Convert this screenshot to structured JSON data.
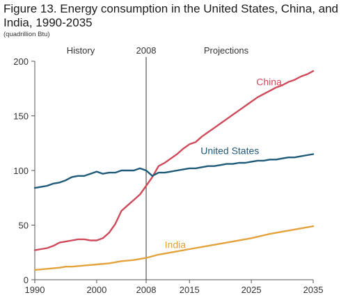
{
  "title": "Figure 13. Energy consumption in the United States, China, and India, 1990-2035",
  "units": "(quadrillion Btu)",
  "colors": {
    "china": "#cf4a5a",
    "united_states": "#1e5a78",
    "india": "#e3a23b",
    "axis": "#555555",
    "divider": "#333333",
    "text": "#333333"
  },
  "chart_data": {
    "type": "line",
    "title": "Figure 13. Energy consumption in the United States, China, and India, 1990-2035",
    "ylabel": "(quadrillion Btu)",
    "xlabel": "",
    "xlim": [
      1990,
      2035
    ],
    "ylim": [
      0,
      200
    ],
    "x_ticks": [
      {
        "value": 1990,
        "label": "1990"
      },
      {
        "value": 2000,
        "label": "2000"
      },
      {
        "value": 2008,
        "label": "2008"
      },
      {
        "value": 2015,
        "label": "2015"
      },
      {
        "value": 2025,
        "label": "2025"
      },
      {
        "value": 2035,
        "label": "2035"
      }
    ],
    "y_ticks": [
      {
        "value": 0,
        "label": "0"
      },
      {
        "value": 50,
        "label": "50"
      },
      {
        "value": 100,
        "label": "100"
      },
      {
        "value": 150,
        "label": "150"
      },
      {
        "value": 200,
        "label": "200"
      }
    ],
    "grid": false,
    "divider_year": 2008,
    "region_labels": {
      "history": "History",
      "divider": "2008",
      "projections": "Projections"
    },
    "series": [
      {
        "name": "China",
        "color": "#cf4a5a",
        "points": [
          [
            1990,
            27
          ],
          [
            1991,
            28
          ],
          [
            1992,
            29
          ],
          [
            1993,
            31
          ],
          [
            1994,
            34
          ],
          [
            1995,
            35
          ],
          [
            1996,
            36
          ],
          [
            1997,
            37
          ],
          [
            1998,
            37
          ],
          [
            1999,
            36
          ],
          [
            2000,
            36
          ],
          [
            2001,
            38
          ],
          [
            2002,
            43
          ],
          [
            2003,
            51
          ],
          [
            2004,
            63
          ],
          [
            2005,
            68
          ],
          [
            2006,
            73
          ],
          [
            2007,
            78
          ],
          [
            2008,
            86
          ],
          [
            2009,
            94
          ],
          [
            2010,
            104
          ],
          [
            2011,
            107
          ],
          [
            2012,
            111
          ],
          [
            2013,
            115
          ],
          [
            2014,
            120
          ],
          [
            2015,
            124
          ],
          [
            2016,
            126
          ],
          [
            2017,
            131
          ],
          [
            2018,
            135
          ],
          [
            2019,
            139
          ],
          [
            2020,
            143
          ],
          [
            2021,
            147
          ],
          [
            2022,
            151
          ],
          [
            2023,
            155
          ],
          [
            2024,
            159
          ],
          [
            2025,
            163
          ],
          [
            2026,
            167
          ],
          [
            2027,
            170
          ],
          [
            2028,
            173
          ],
          [
            2029,
            176
          ],
          [
            2030,
            178
          ],
          [
            2031,
            181
          ],
          [
            2032,
            183
          ],
          [
            2033,
            186
          ],
          [
            2034,
            188
          ],
          [
            2035,
            191
          ]
        ]
      },
      {
        "name": "United States",
        "color": "#1e5a78",
        "points": [
          [
            1990,
            84
          ],
          [
            1991,
            85
          ],
          [
            1992,
            86
          ],
          [
            1993,
            88
          ],
          [
            1994,
            89
          ],
          [
            1995,
            91
          ],
          [
            1996,
            94
          ],
          [
            1997,
            95
          ],
          [
            1998,
            95
          ],
          [
            1999,
            97
          ],
          [
            2000,
            99
          ],
          [
            2001,
            97
          ],
          [
            2002,
            98
          ],
          [
            2003,
            98
          ],
          [
            2004,
            100
          ],
          [
            2005,
            100
          ],
          [
            2006,
            100
          ],
          [
            2007,
            102
          ],
          [
            2008,
            100
          ],
          [
            2009,
            95
          ],
          [
            2010,
            98
          ],
          [
            2011,
            98
          ],
          [
            2012,
            99
          ],
          [
            2013,
            100
          ],
          [
            2014,
            101
          ],
          [
            2015,
            102
          ],
          [
            2016,
            102
          ],
          [
            2017,
            103
          ],
          [
            2018,
            104
          ],
          [
            2019,
            104
          ],
          [
            2020,
            105
          ],
          [
            2021,
            106
          ],
          [
            2022,
            106
          ],
          [
            2023,
            107
          ],
          [
            2024,
            107
          ],
          [
            2025,
            108
          ],
          [
            2026,
            109
          ],
          [
            2027,
            109
          ],
          [
            2028,
            110
          ],
          [
            2029,
            110
          ],
          [
            2030,
            111
          ],
          [
            2031,
            112
          ],
          [
            2032,
            112
          ],
          [
            2033,
            113
          ],
          [
            2034,
            114
          ],
          [
            2035,
            115
          ]
        ]
      },
      {
        "name": "India",
        "color": "#e3a23b",
        "points": [
          [
            1990,
            9
          ],
          [
            1992,
            10
          ],
          [
            1994,
            11
          ],
          [
            1995,
            12
          ],
          [
            1996,
            12
          ],
          [
            1998,
            13
          ],
          [
            2000,
            14
          ],
          [
            2002,
            15
          ],
          [
            2004,
            17
          ],
          [
            2006,
            18
          ],
          [
            2008,
            20
          ],
          [
            2010,
            23
          ],
          [
            2012,
            25
          ],
          [
            2015,
            28
          ],
          [
            2018,
            31
          ],
          [
            2020,
            33
          ],
          [
            2022,
            35
          ],
          [
            2025,
            38
          ],
          [
            2028,
            42
          ],
          [
            2030,
            44
          ],
          [
            2032,
            46
          ],
          [
            2035,
            49
          ]
        ]
      }
    ],
    "annotations": [
      {
        "series": "China",
        "text": "China",
        "x": 2025.8,
        "y": 178
      },
      {
        "series": "United States",
        "text": "United States",
        "x": 2016.8,
        "y": 115
      },
      {
        "series": "India",
        "text": "India",
        "x": 2011,
        "y": 29
      }
    ]
  }
}
